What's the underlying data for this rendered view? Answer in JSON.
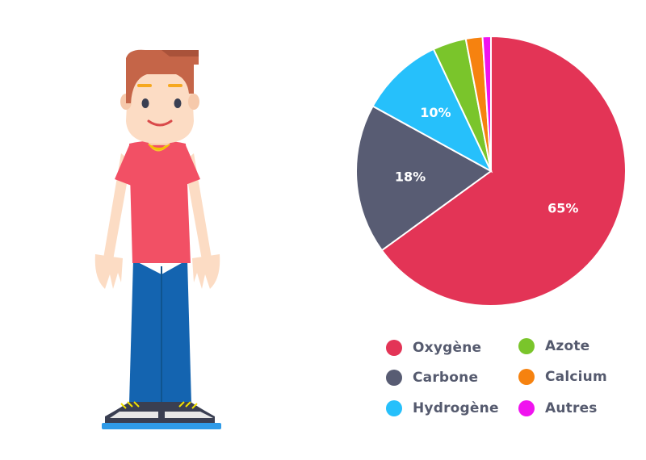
{
  "chart_data": {
    "type": "pie",
    "slices": [
      {
        "name": "Oxygène",
        "value": 65,
        "label": "65%",
        "color": "#e33456"
      },
      {
        "name": "Carbone",
        "value": 18,
        "label": "18%",
        "color": "#585c73"
      },
      {
        "name": "Hydrogène",
        "value": 10,
        "label": "10%",
        "color": "#26c0fb"
      },
      {
        "name": "Azote",
        "value": 4,
        "label": "",
        "color": "#7ac52b"
      },
      {
        "name": "Calcium",
        "value": 2,
        "label": "",
        "color": "#f6820f"
      },
      {
        "name": "Autres",
        "value": 1,
        "label": "",
        "color": "#f013ef"
      }
    ],
    "legend_placement": "bottom",
    "labels_in_slices": true
  },
  "illustration": {
    "icon": "boy-character-icon"
  }
}
